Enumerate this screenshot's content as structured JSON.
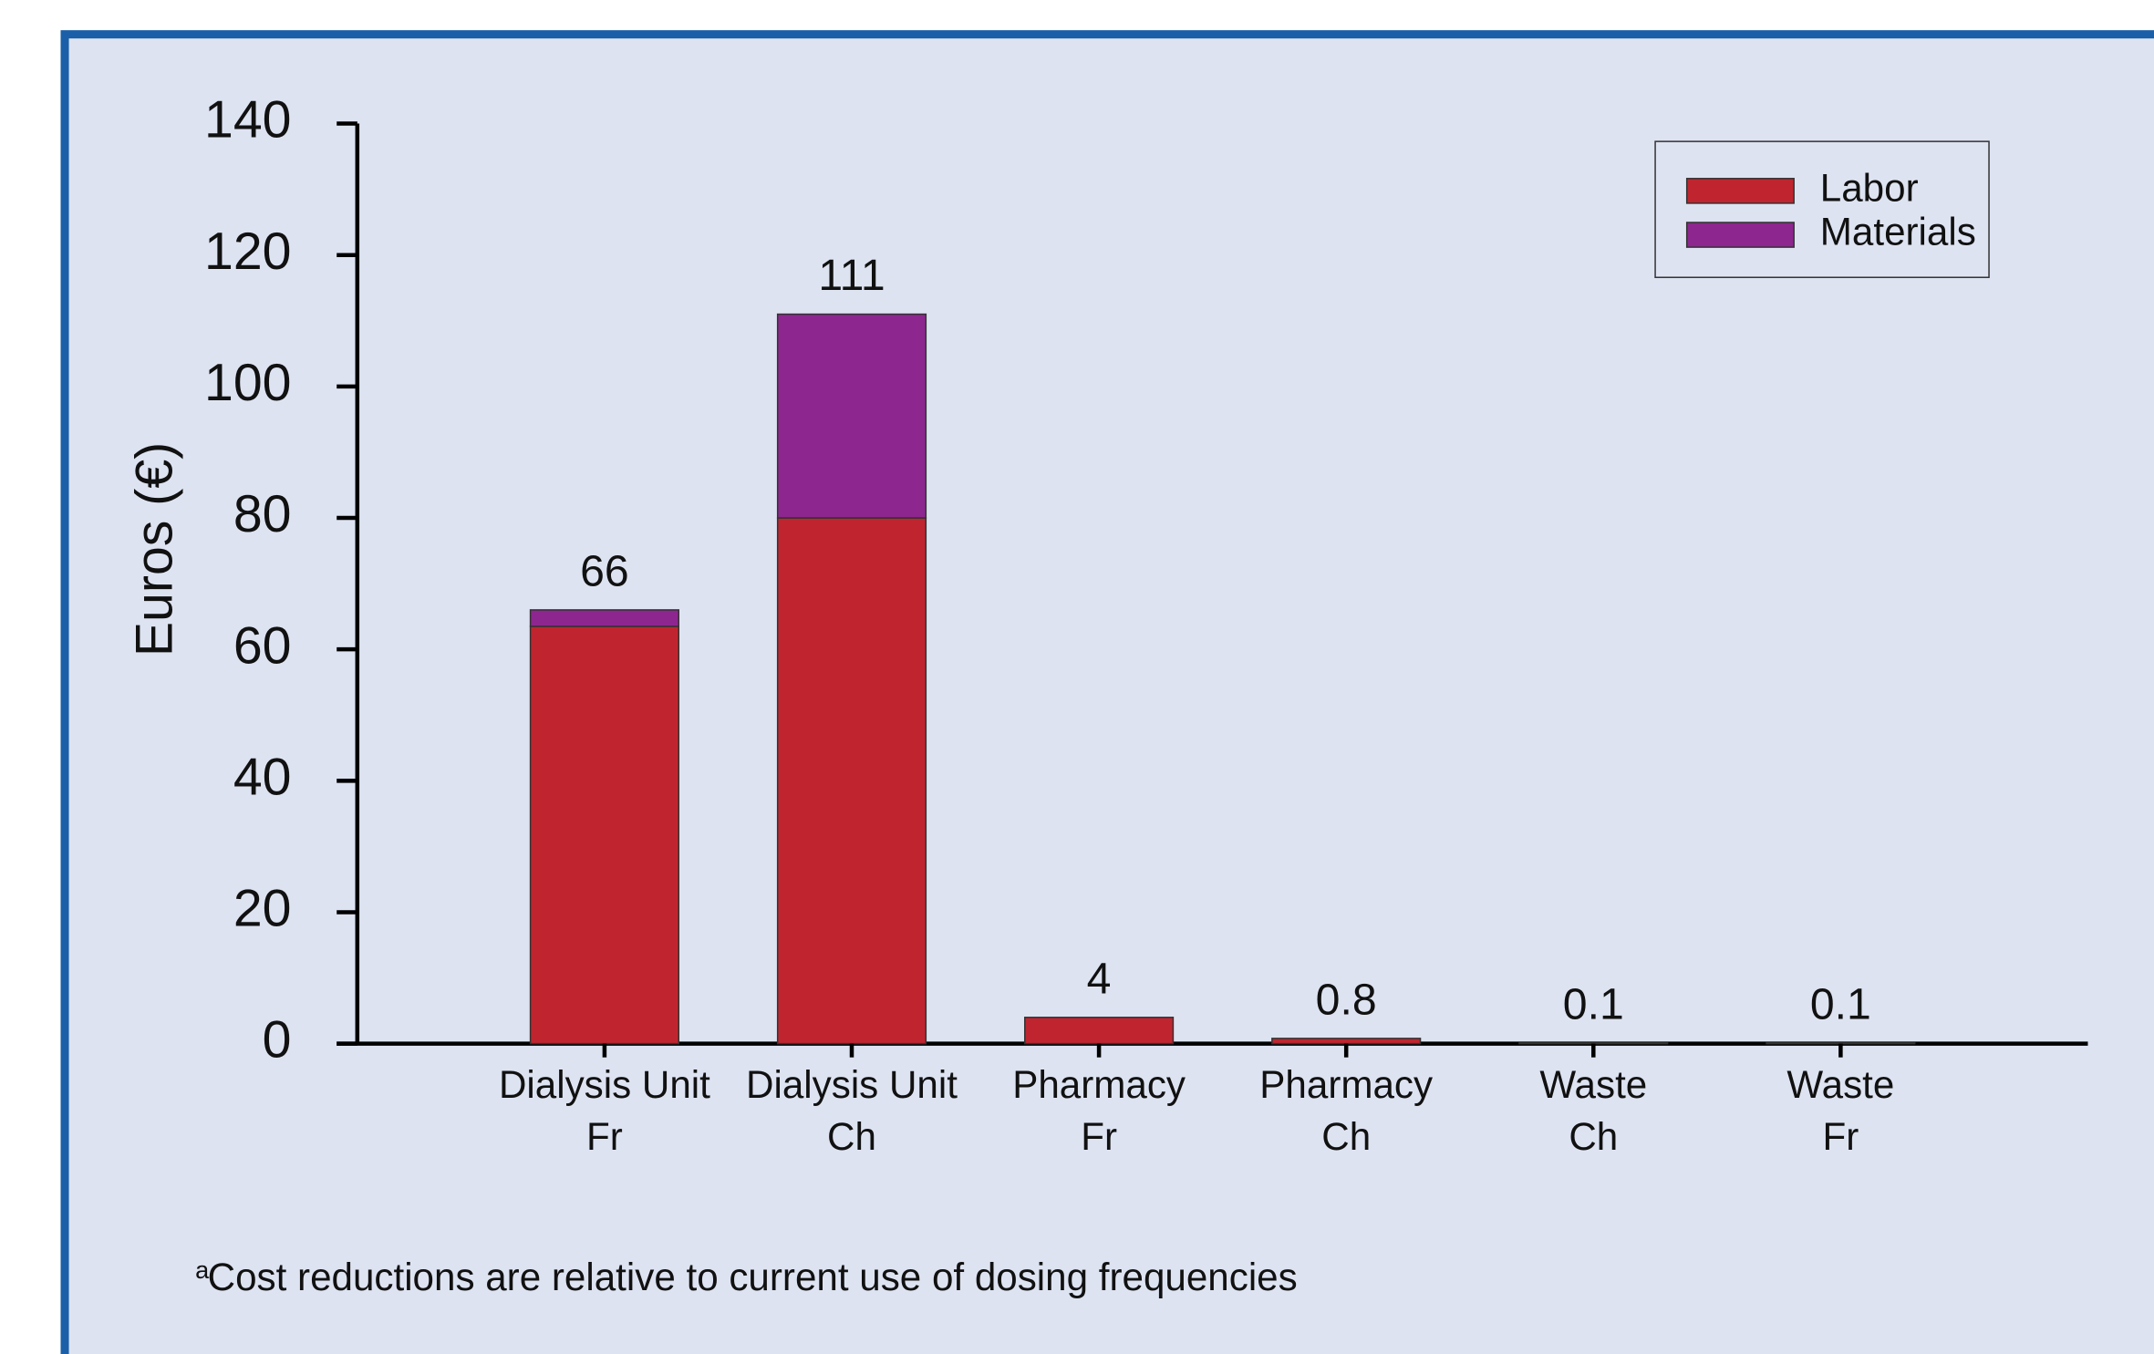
{
  "chart_data": {
    "type": "stacked_bar",
    "ylabel": "Euros (€)",
    "categories": [
      [
        "Dialysis Unit",
        "Fr"
      ],
      [
        "Dialysis Unit",
        "Ch"
      ],
      [
        "Pharmacy",
        "Fr"
      ],
      [
        "Pharmacy",
        "Ch"
      ],
      [
        "Waste",
        "Ch"
      ],
      [
        "Waste",
        "Fr"
      ]
    ],
    "series": [
      {
        "name": "Labor",
        "color": "#c0252f",
        "values": [
          63.5,
          80,
          4,
          0.8,
          0.1,
          0.1
        ]
      },
      {
        "name": "Materials",
        "color": "#8e268f",
        "values": [
          2.5,
          31,
          0,
          0,
          0,
          0
        ]
      }
    ],
    "totals": [
      66,
      111,
      4,
      0.8,
      0.1,
      0.1
    ],
    "ylim": [
      0,
      140
    ],
    "yticks": [
      0,
      20,
      40,
      60,
      80,
      100,
      120,
      140
    ],
    "legend": "upper right",
    "footnote_marker": "a",
    "footnote": "Cost reductions are relative to current use of dosing frequencies"
  }
}
